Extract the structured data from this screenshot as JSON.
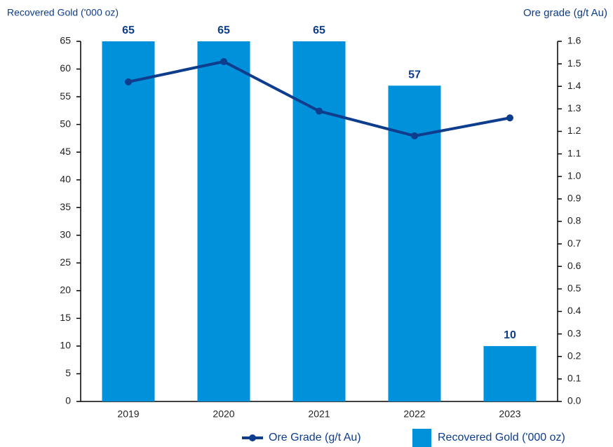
{
  "chart_data": {
    "type": "bar",
    "y_label": "Recovered Gold ('000 oz)",
    "y2_label": "Ore grade (g/t Au)",
    "categories": [
      "2019",
      "2020",
      "2021",
      "2022",
      "2023"
    ],
    "series": [
      {
        "name": "Ore Grade (g/t Au)",
        "type": "line",
        "axis": "y2",
        "color": "#0d3d8c",
        "values": [
          1.42,
          1.51,
          1.29,
          1.18,
          1.26
        ]
      },
      {
        "name": "Recovered Gold ('000 oz)",
        "type": "bar",
        "color": "#0091da",
        "values": [
          65,
          65,
          65,
          57,
          10
        ]
      }
    ],
    "ylim": [
      0,
      65
    ],
    "yticks": [
      0,
      5,
      10,
      15,
      20,
      25,
      30,
      35,
      40,
      45,
      50,
      55,
      60,
      65
    ],
    "y2lim": [
      0,
      1.6
    ],
    "y2ticks": [
      {
        "value": 0,
        "label": "0.0"
      },
      0.1,
      0.2,
      0.3,
      0.4,
      0.5,
      0.6,
      0.7,
      0.8,
      0.9,
      {
        "value": 1,
        "label": "1.0"
      },
      1.1,
      1.2,
      1.3,
      1.4,
      1.5,
      1.6
    ],
    "grid": false,
    "legend": "bottom"
  }
}
